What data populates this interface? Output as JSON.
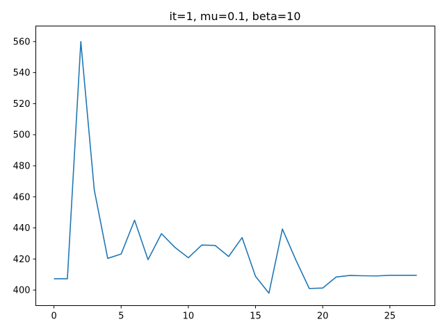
{
  "chart_data": {
    "type": "line",
    "title": "it=1, mu=0.1, beta=10",
    "xlabel": "",
    "ylabel": "",
    "xlim": [
      -1.35,
      28.35
    ],
    "ylim": [
      390,
      570
    ],
    "xticks": [
      0,
      5,
      10,
      15,
      20,
      25
    ],
    "yticks": [
      400,
      420,
      440,
      460,
      480,
      500,
      520,
      540,
      560
    ],
    "grid": false,
    "series": [
      {
        "color": "#1f77b4",
        "x": [
          0,
          1,
          2,
          3,
          4,
          5,
          6,
          7,
          8,
          9,
          10,
          11,
          12,
          13,
          14,
          15,
          16,
          17,
          18,
          19,
          20,
          21,
          22,
          23,
          24,
          25,
          26,
          27
        ],
        "values": [
          407.3,
          407.3,
          560.0,
          464.5,
          420.4,
          423.2,
          445.0,
          419.6,
          436.3,
          427.5,
          420.8,
          429.0,
          428.7,
          421.6,
          433.8,
          408.8,
          398.0,
          439.3,
          419.4,
          401.0,
          401.3,
          408.4,
          409.4,
          409.2,
          409.1,
          409.5,
          409.5,
          409.5
        ]
      }
    ]
  }
}
